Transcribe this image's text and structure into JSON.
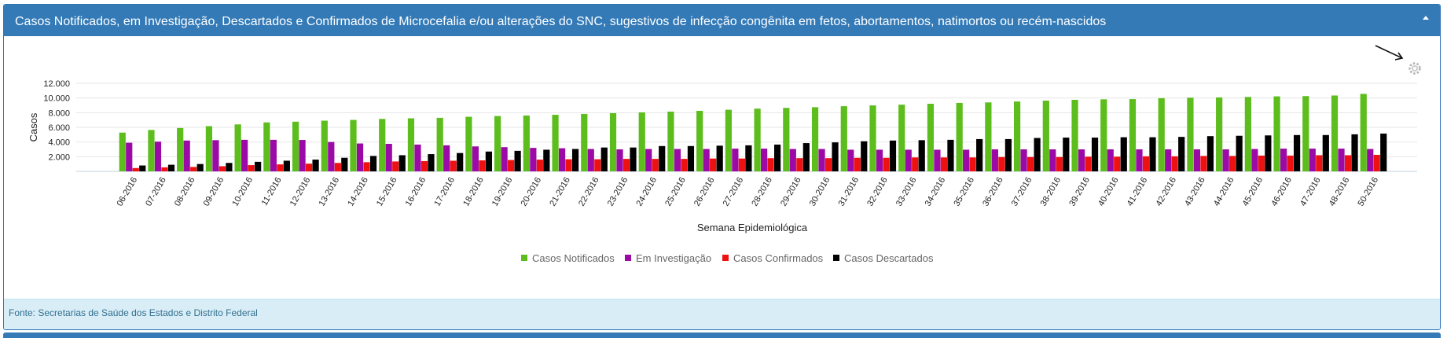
{
  "panel": {
    "title": "Casos Notificados, em Investigação, Descartados e Confirmados de Microcefalia e/ou alterações do SNC, sugestivos de infecção congênita em fetos, abortamentos, natimortos ou recém-nascidos",
    "source": "Fonte: Secretarias de Saúde dos Estados e Distrito Federal"
  },
  "icons": {
    "collapse": "chevron-up-icon",
    "settings": "gear-icon",
    "pointer": "arrow-icon"
  },
  "chart_data": {
    "type": "bar",
    "xlabel": "Semana Epidemiológica",
    "ylabel": "Casos",
    "ylim": [
      0,
      12000
    ],
    "yticks": [
      2000,
      4000,
      6000,
      8000,
      10000,
      12000
    ],
    "ytick_labels": [
      "2.000",
      "4.000",
      "6.000",
      "8.000",
      "10.000",
      "12.000"
    ],
    "grid": true,
    "legend_position": "bottom-center",
    "categories": [
      "06-2016",
      "07-2016",
      "08-2016",
      "09-2016",
      "10-2016",
      "11-2016",
      "12-2016",
      "13-2016",
      "14-2016",
      "15-2016",
      "16-2016",
      "17-2016",
      "18-2016",
      "19-2016",
      "20-2016",
      "21-2016",
      "22-2016",
      "23-2016",
      "24-2016",
      "25-2016",
      "26-2016",
      "27-2016",
      "28-2016",
      "29-2016",
      "30-2016",
      "31-2016",
      "32-2016",
      "33-2016",
      "34-2016",
      "35-2016",
      "36-2016",
      "37-2016",
      "38-2016",
      "39-2016",
      "40-2016",
      "41-2016",
      "42-2016",
      "43-2016",
      "44-2016",
      "45-2016",
      "46-2016",
      "47-2016",
      "48-2016",
      "50-2016"
    ],
    "series": [
      {
        "name": "Casos Notificados",
        "color": "#5cbd1c",
        "values": [
          5280,
          5640,
          5910,
          6160,
          6400,
          6670,
          6770,
          6910,
          7010,
          7150,
          7230,
          7300,
          7440,
          7540,
          7610,
          7710,
          7830,
          7930,
          8040,
          8140,
          8250,
          8400,
          8550,
          8650,
          8740,
          8880,
          8990,
          9090,
          9210,
          9330,
          9400,
          9520,
          9640,
          9750,
          9820,
          9850,
          9970,
          10040,
          10080,
          10140,
          10220,
          10260,
          10340,
          10560
        ]
      },
      {
        "name": "Em Investigação",
        "color": "#9b0aa6",
        "values": [
          3900,
          4050,
          4200,
          4250,
          4300,
          4300,
          4280,
          4000,
          3800,
          3750,
          3650,
          3550,
          3400,
          3300,
          3200,
          3150,
          3050,
          3000,
          3050,
          3050,
          3050,
          3100,
          3100,
          3050,
          3050,
          2950,
          2950,
          2950,
          2950,
          2950,
          3000,
          3000,
          3000,
          3000,
          3000,
          3000,
          3000,
          3000,
          3000,
          3050,
          3100,
          3100,
          3100,
          3050
        ]
      },
      {
        "name": "Casos Confirmados",
        "color": "#ee1111",
        "values": [
          450,
          550,
          600,
          700,
          850,
          950,
          1050,
          1150,
          1250,
          1350,
          1400,
          1450,
          1500,
          1550,
          1600,
          1650,
          1650,
          1700,
          1700,
          1700,
          1750,
          1750,
          1800,
          1800,
          1800,
          1850,
          1850,
          1900,
          1900,
          1900,
          1950,
          1950,
          1950,
          2000,
          2000,
          2050,
          2050,
          2100,
          2100,
          2150,
          2150,
          2200,
          2200,
          2250
        ]
      },
      {
        "name": "Casos Descartados",
        "color": "#000000",
        "values": [
          800,
          900,
          1000,
          1150,
          1300,
          1450,
          1600,
          1850,
          2100,
          2200,
          2350,
          2500,
          2700,
          2800,
          2950,
          3050,
          3250,
          3250,
          3450,
          3450,
          3500,
          3550,
          3650,
          3850,
          3950,
          4100,
          4200,
          4250,
          4300,
          4400,
          4400,
          4550,
          4600,
          4600,
          4650,
          4650,
          4700,
          4800,
          4850,
          4900,
          4950,
          4950,
          5050,
          5150
        ]
      }
    ]
  }
}
